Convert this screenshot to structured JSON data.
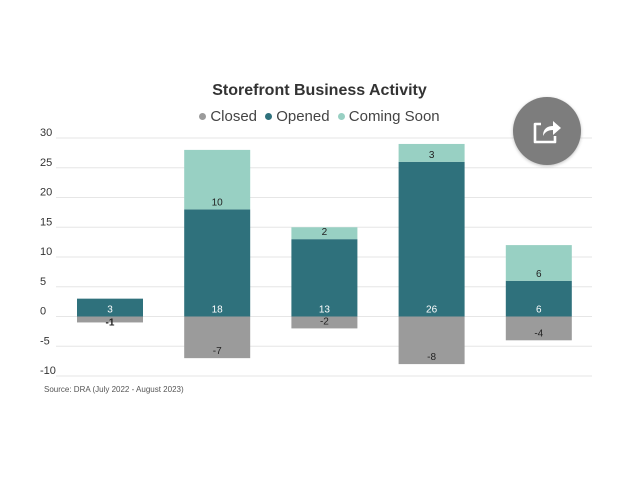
{
  "chart_data": {
    "type": "bar",
    "stacked": true,
    "title": "Storefront Business Activity",
    "xlabel": "",
    "ylabel": "",
    "ylim": [
      -10,
      30
    ],
    "yticks": [
      "30",
      "25",
      "20",
      "15",
      "10",
      "5",
      "0",
      "-5",
      "-10"
    ],
    "ytick_values": [
      30,
      25,
      20,
      15,
      10,
      5,
      0,
      -5,
      -10
    ],
    "grid": true,
    "legend_position": "top",
    "categories": [
      "",
      "",
      "",
      "",
      ""
    ],
    "series": [
      {
        "name": "Closed",
        "values": [
          -1,
          -7,
          -2,
          -8,
          -4
        ],
        "labels": [
          "-1",
          "-7",
          "-2",
          "-8",
          "-4"
        ],
        "color": "#9b9b9b",
        "label_color": "#222222"
      },
      {
        "name": "Opened",
        "values": [
          3,
          18,
          13,
          26,
          6
        ],
        "labels": [
          "3",
          "18",
          "13",
          "26",
          "6"
        ],
        "color": "#2f717c",
        "label_color": "#ffffff"
      },
      {
        "name": "Coming Soon",
        "values": [
          0,
          10,
          2,
          3,
          6
        ],
        "labels": [
          "",
          "10",
          "2",
          "3",
          "6"
        ],
        "color": "#98d0c3",
        "label_color": "#222222"
      }
    ],
    "source": "Source: DRA (July 2022 - August 2023)"
  },
  "share_button": {
    "icon": "share-arrow-icon",
    "color": "#7d7d7d"
  }
}
